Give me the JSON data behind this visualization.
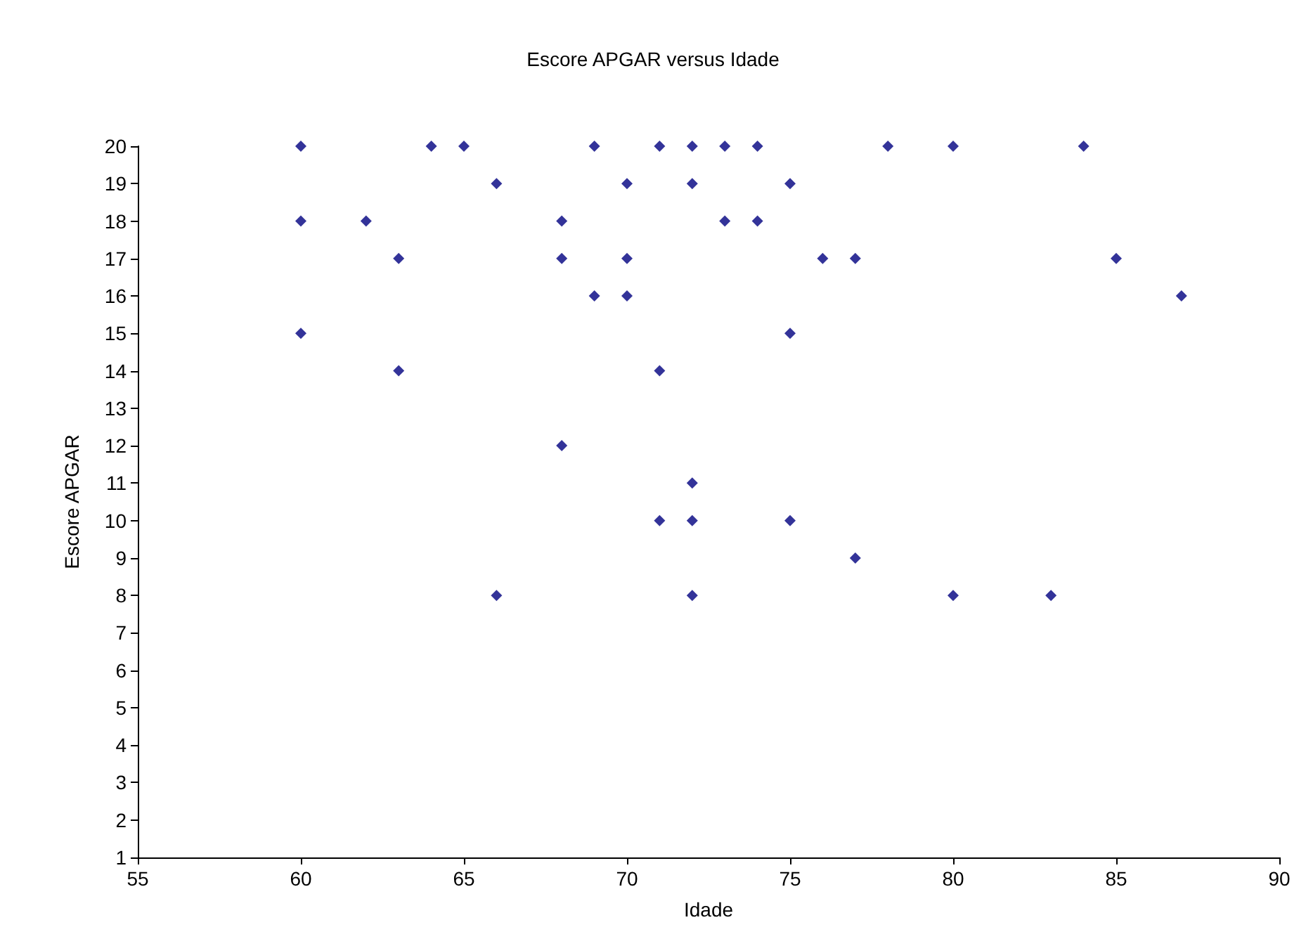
{
  "chart_data": {
    "type": "scatter",
    "title": "Escore APGAR versus Idade",
    "xlabel": "Idade",
    "ylabel": "Escore APGAR",
    "x": [
      60,
      60,
      60,
      62,
      63,
      63,
      64,
      65,
      66,
      66,
      68,
      68,
      68,
      69,
      69,
      70,
      70,
      70,
      71,
      71,
      71,
      72,
      72,
      72,
      72,
      72,
      73,
      73,
      74,
      74,
      75,
      75,
      75,
      76,
      77,
      77,
      78,
      80,
      80,
      83,
      84,
      85,
      87
    ],
    "series": [
      {
        "color": "#000080",
        "values": [
          20,
          18,
          15,
          18,
          17,
          14,
          20,
          20,
          19,
          8,
          18,
          17,
          12,
          20,
          16,
          19,
          17,
          16,
          20,
          14,
          10,
          20,
          19,
          11,
          10,
          8,
          20,
          18,
          20,
          18,
          19,
          15,
          10,
          17,
          17,
          9,
          20,
          20,
          8,
          8,
          20,
          17,
          16
        ]
      }
    ],
    "xlim": [
      55,
      90
    ],
    "xticks": [
      55,
      60,
      65,
      70,
      75,
      80,
      85,
      90
    ],
    "ylim": [
      1,
      20
    ],
    "yticks": [
      1,
      2,
      3,
      4,
      5,
      6,
      7,
      8,
      9,
      10,
      11,
      12,
      13,
      14,
      15,
      16,
      17,
      18,
      19,
      20
    ],
    "grid": false,
    "marker": "diamond"
  }
}
